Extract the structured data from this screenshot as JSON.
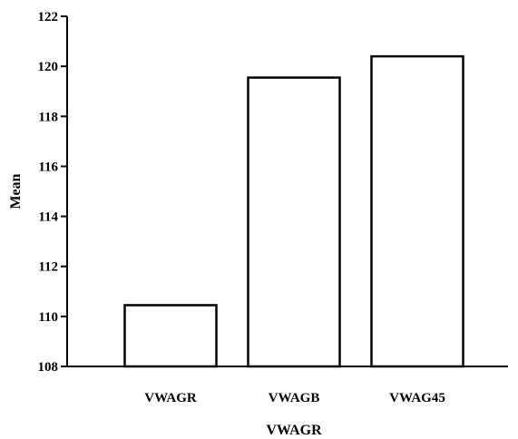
{
  "chart_data": {
    "type": "bar",
    "categories": [
      "VWAGR",
      "VWAGB",
      "VWAG45"
    ],
    "values": [
      110.45,
      119.55,
      120.4
    ],
    "xlabel": "VWAGR",
    "ylabel": "Mean",
    "ylim": [
      108,
      122
    ],
    "yticks": [
      108,
      110,
      112,
      114,
      116,
      118,
      120,
      122
    ],
    "grid": false,
    "bar_fill": "#ffffff",
    "bar_stroke": "#000000"
  }
}
